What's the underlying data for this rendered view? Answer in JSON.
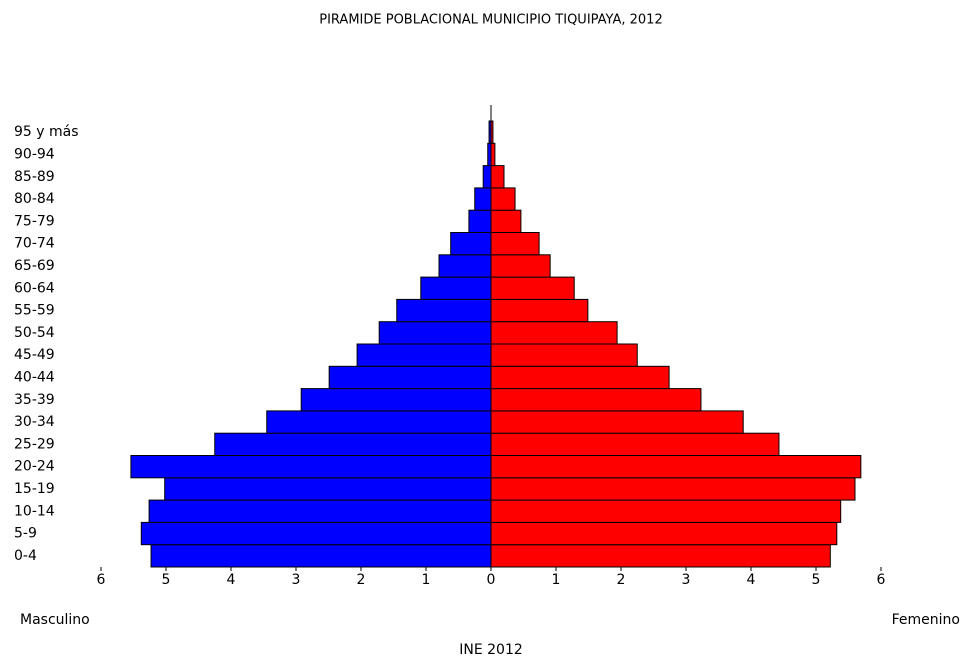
{
  "chart_data": {
    "type": "pyramid",
    "title": "PIRAMIDE POBLACIONAL MUNICIPIO TIQUIPAYA, 2012",
    "x_label": "INE 2012",
    "categories": [
      "0-4",
      "5-9",
      "10-14",
      "15-19",
      "20-24",
      "25-29",
      "30-34",
      "35-39",
      "40-44",
      "45-49",
      "50-54",
      "55-59",
      "60-64",
      "65-69",
      "70-74",
      "75-79",
      "80-84",
      "85-89",
      "90-94",
      "95 y más"
    ],
    "series": [
      {
        "name": "Masculino",
        "color": "#0000ff",
        "side": "left",
        "values": [
          5.23,
          5.38,
          5.26,
          5.02,
          5.54,
          4.25,
          3.45,
          2.92,
          2.49,
          2.06,
          1.72,
          1.45,
          1.08,
          0.8,
          0.62,
          0.34,
          0.25,
          0.12,
          0.05,
          0.03
        ]
      },
      {
        "name": "Femenino",
        "color": "#ff0000",
        "side": "right",
        "values": [
          5.22,
          5.32,
          5.38,
          5.6,
          5.69,
          4.43,
          3.88,
          3.23,
          2.74,
          2.25,
          1.94,
          1.49,
          1.28,
          0.91,
          0.74,
          0.46,
          0.37,
          0.2,
          0.06,
          0.03
        ]
      }
    ],
    "xlim": [
      -6,
      6
    ],
    "xticks": [
      {
        "value": -6,
        "label": "6"
      },
      {
        "value": -5,
        "label": "5"
      },
      {
        "value": -4,
        "label": "4"
      },
      {
        "value": -3,
        "label": "3"
      },
      {
        "value": -2,
        "label": "2"
      },
      {
        "value": -1,
        "label": "1"
      },
      0,
      1,
      2,
      3,
      4,
      5,
      6
    ]
  }
}
